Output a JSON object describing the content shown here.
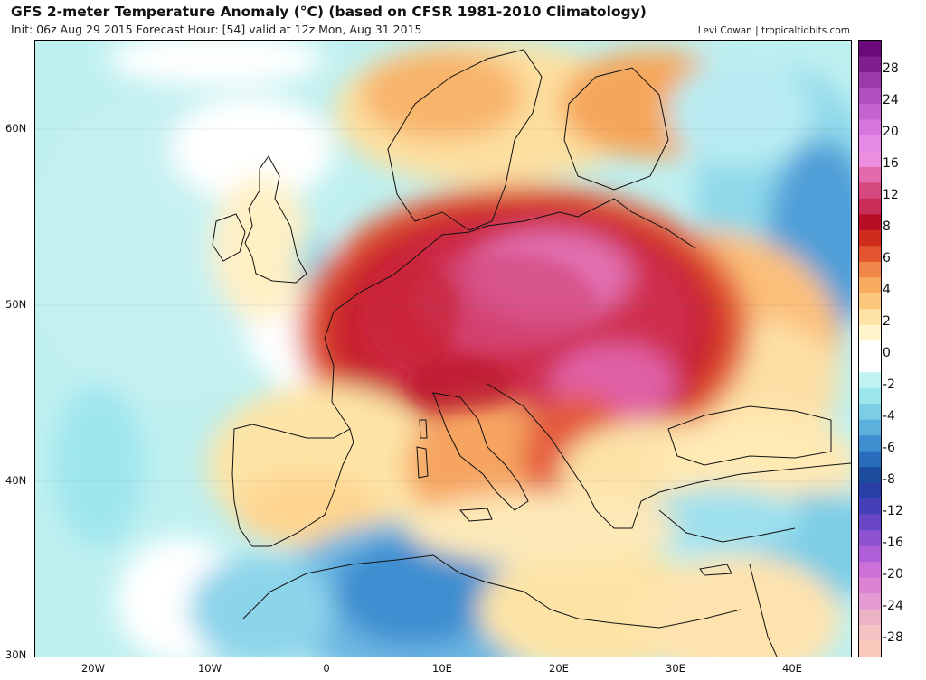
{
  "header": {
    "title": "GFS 2-meter Temperature Anomaly (°C) (based on CFSR 1981-2010 Climatology)",
    "subtitle": "Init: 06z Aug 29 2015   Forecast Hour: [54]   valid at 12z Mon, Aug 31 2015",
    "credit": "Levi Cowan | tropicaltidbits.com"
  },
  "map": {
    "lat_labels": [
      "60N",
      "50N",
      "40N",
      "30N"
    ],
    "lon_labels": [
      "20W",
      "10W",
      "0",
      "10E",
      "20E",
      "30E",
      "40E"
    ]
  },
  "colorbar": {
    "labels": [
      "28",
      "24",
      "20",
      "16",
      "12",
      "8",
      "6",
      "4",
      "2",
      "0",
      "-2",
      "-4",
      "-6",
      "-8",
      "-12",
      "-16",
      "-20",
      "-24",
      "-28"
    ],
    "colors": [
      "#6a0a7a",
      "#7f1f8f",
      "#9a3aaa",
      "#b04ec0",
      "#c462cf",
      "#d476dd",
      "#e48ae6",
      "#ee8ee0",
      "#e46aae",
      "#d4487e",
      "#c82e58",
      "#b80e25",
      "#cf2c1e",
      "#e25530",
      "#f0864a",
      "#f8aa5e",
      "#fcc87e",
      "#fde4a6",
      "#fff4cc",
      "#ffffff",
      "#ffffff",
      "#c2f3f3",
      "#9ae6ec",
      "#7ccde6",
      "#5cb0dc",
      "#3e8ed0",
      "#2a6cbc",
      "#1e4c9c",
      "#2a3ea8",
      "#4640b8",
      "#6846c4",
      "#8c52cf",
      "#b05ed7",
      "#cc70d7",
      "#dc84d3",
      "#e49ad2",
      "#ecb2c6",
      "#f4c2c2",
      "#fbc8bc"
    ],
    "units": "°C"
  }
}
